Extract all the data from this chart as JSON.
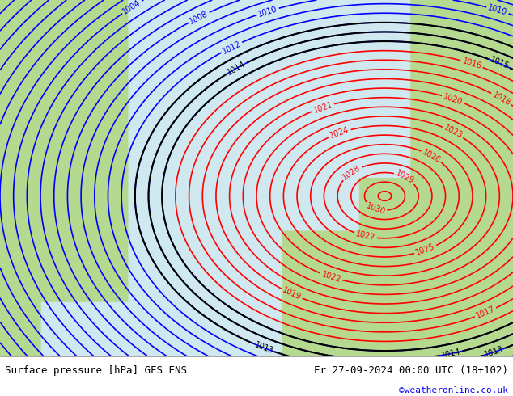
{
  "title_left": "Surface pressure [hPa] GFS ENS",
  "title_right": "Fr 27-09-2024 00:00 UTC (18+102)",
  "credit": "©weatheronline.co.uk",
  "bg_color_land": "#b5d98f",
  "bg_color_sea": "#d0e8f0",
  "bg_color_bottom": "#ffffff",
  "line_color_low": "#0000ff",
  "line_color_high": "#ff0000",
  "line_color_zero": "#000000",
  "bottom_bar_height": 0.1,
  "pressure_min": 993,
  "pressure_max": 1032,
  "pressure_step": 1,
  "label_fontsize": 7,
  "title_fontsize": 9,
  "credit_fontsize": 8,
  "credit_color": "#0000ff"
}
